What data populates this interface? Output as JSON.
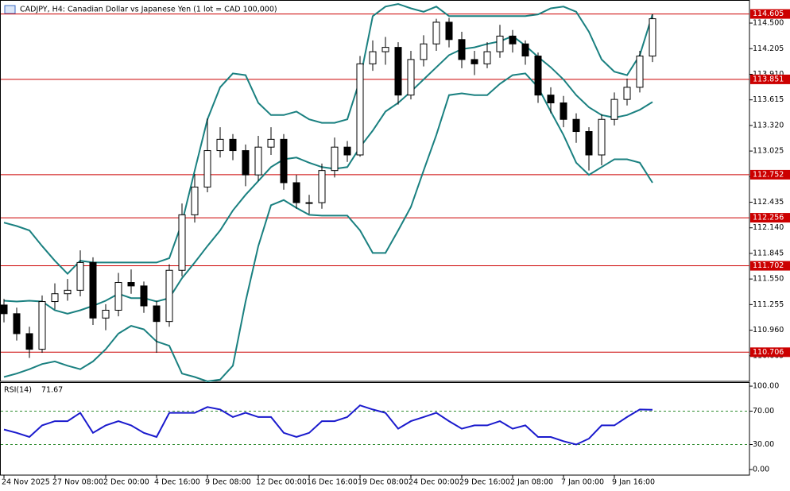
{
  "chart_data": [
    {
      "type": "candlestick",
      "title": "CADJPY, H4:  Canadian Dollar vs Japanese Yen (1 lot = CAD 100,000)",
      "categories": [
        "24 Nov 2025",
        null,
        null,
        null,
        "27 Nov 08:00",
        null,
        null,
        null,
        "2 Dec 00:00",
        null,
        null,
        null,
        "4 Dec 16:00",
        null,
        null,
        null,
        "9 Dec 08:00",
        null,
        null,
        null,
        "12 Dec 00:00",
        null,
        null,
        null,
        "16 Dec 16:00",
        null,
        null,
        null,
        "19 Dec 08:00",
        null,
        null,
        null,
        "24 Dec 00:00",
        null,
        null,
        null,
        "29 Dec 16:00",
        null,
        null,
        null,
        "2 Jan 08:00",
        null,
        null,
        null,
        "7 Jan 00:00",
        null,
        null,
        null,
        "9 Jan 16:00",
        null,
        null,
        null
      ],
      "open": [
        111.25,
        111.15,
        110.92,
        110.74,
        111.29,
        111.38,
        111.42,
        111.74,
        111.1,
        111.19,
        111.51,
        111.47,
        111.24,
        111.06,
        111.65,
        112.29,
        112.61,
        113.03,
        113.16,
        113.03,
        112.75,
        113.07,
        113.16,
        112.66,
        112.43,
        112.43,
        112.8,
        113.07,
        112.98,
        114.03,
        114.17,
        114.22,
        113.67,
        114.08,
        114.26,
        114.51,
        114.31,
        114.08,
        114.03,
        114.17,
        114.35,
        114.26,
        114.12,
        113.67,
        113.58,
        113.39,
        113.25,
        112.98,
        113.39,
        113.62,
        113.76,
        114.12
      ],
      "high": [
        111.32,
        111.22,
        111.0,
        111.36,
        111.5,
        111.55,
        111.88,
        111.8,
        111.26,
        111.62,
        111.66,
        111.52,
        111.3,
        111.72,
        112.42,
        112.76,
        113.4,
        113.3,
        113.22,
        113.1,
        113.2,
        113.3,
        113.22,
        112.75,
        112.52,
        112.88,
        113.18,
        113.14,
        114.12,
        114.3,
        114.34,
        114.28,
        114.18,
        114.36,
        114.55,
        114.56,
        114.4,
        114.18,
        114.28,
        114.48,
        114.42,
        114.3,
        114.16,
        113.76,
        113.66,
        113.46,
        113.3,
        113.45,
        113.7,
        113.86,
        114.18,
        114.6
      ],
      "low": [
        111.05,
        110.84,
        110.64,
        110.7,
        111.2,
        111.3,
        111.35,
        111.02,
        110.96,
        111.12,
        111.38,
        111.16,
        110.7,
        111.0,
        111.58,
        112.2,
        112.55,
        112.95,
        112.92,
        112.62,
        112.68,
        112.98,
        112.58,
        112.36,
        112.3,
        112.36,
        112.72,
        112.9,
        112.96,
        113.95,
        114.02,
        113.56,
        113.62,
        114.0,
        114.18,
        114.22,
        113.98,
        113.9,
        113.98,
        114.1,
        114.16,
        114.02,
        113.58,
        113.46,
        113.3,
        113.12,
        112.8,
        112.86,
        113.32,
        113.55,
        113.7,
        114.05
      ],
      "close": [
        111.15,
        110.92,
        110.74,
        111.29,
        111.38,
        111.42,
        111.74,
        111.1,
        111.19,
        111.51,
        111.47,
        111.24,
        111.06,
        111.65,
        112.29,
        112.61,
        113.03,
        113.16,
        113.03,
        112.75,
        113.07,
        113.16,
        112.66,
        112.43,
        112.43,
        112.8,
        113.07,
        112.98,
        114.03,
        114.17,
        114.22,
        113.67,
        114.08,
        114.26,
        114.51,
        114.31,
        114.08,
        114.03,
        114.17,
        114.35,
        114.26,
        114.12,
        113.67,
        113.58,
        113.39,
        113.25,
        112.98,
        113.39,
        113.62,
        113.76,
        114.12,
        114.55
      ],
      "up_color": "#ffffff",
      "down_color": "#000000",
      "bands": {
        "color": "#1a8080",
        "upper": [
          112.2,
          112.16,
          112.11,
          111.93,
          111.76,
          111.61,
          111.76,
          111.74,
          111.74,
          111.74,
          111.74,
          111.74,
          111.74,
          111.79,
          112.2,
          112.8,
          113.39,
          113.76,
          113.92,
          113.9,
          113.58,
          113.44,
          113.44,
          113.48,
          113.39,
          113.35,
          113.35,
          113.39,
          113.85,
          114.58,
          114.69,
          114.72,
          114.67,
          114.63,
          114.69,
          114.58,
          114.58,
          114.58,
          114.58,
          114.58,
          114.58,
          114.58,
          114.6,
          114.67,
          114.69,
          114.63,
          114.4,
          114.08,
          113.94,
          113.9,
          114.13,
          114.6
        ],
        "middle": [
          111.3,
          111.29,
          111.3,
          111.29,
          111.19,
          111.15,
          111.19,
          111.24,
          111.3,
          111.38,
          111.33,
          111.33,
          111.29,
          111.33,
          111.56,
          111.74,
          111.93,
          112.11,
          112.34,
          112.52,
          112.68,
          112.84,
          112.93,
          112.95,
          112.89,
          112.84,
          112.82,
          112.84,
          113.07,
          113.26,
          113.48,
          113.58,
          113.71,
          113.85,
          113.99,
          114.13,
          114.2,
          114.22,
          114.26,
          114.29,
          114.35,
          114.24,
          114.11,
          113.99,
          113.85,
          113.67,
          113.53,
          113.44,
          113.41,
          113.44,
          113.5,
          113.59
        ],
        "lower": [
          110.42,
          110.46,
          110.51,
          110.57,
          110.6,
          110.55,
          110.51,
          110.6,
          110.74,
          110.92,
          111.01,
          110.97,
          110.83,
          110.78,
          110.46,
          110.42,
          110.37,
          110.39,
          110.55,
          111.29,
          111.93,
          112.4,
          112.46,
          112.37,
          112.29,
          112.28,
          112.28,
          112.28,
          112.11,
          111.85,
          111.85,
          112.11,
          112.38,
          112.8,
          113.21,
          113.67,
          113.69,
          113.67,
          113.67,
          113.8,
          113.9,
          113.92,
          113.76,
          113.48,
          113.21,
          112.89,
          112.75,
          112.84,
          112.93,
          112.93,
          112.89,
          112.66
        ]
      },
      "levels": {
        "color": "#cc0000",
        "values": [
          114.605,
          113.851,
          112.752,
          112.256,
          111.702,
          110.706
        ]
      },
      "ylim": [
        110.37,
        114.766
      ],
      "yticks": [
        {
          "value": 114.5,
          "label": "114.500"
        },
        {
          "value": 114.205,
          "label": "114.205"
        },
        {
          "value": 113.91,
          "label": "113.910"
        },
        {
          "value": 113.615,
          "label": "113.615"
        },
        {
          "value": 113.32,
          "label": "113.320"
        },
        {
          "value": 113.025,
          "label": "113.025"
        },
        {
          "value": 112.73,
          "label": "112.730"
        },
        {
          "value": 112.435,
          "label": "112.435"
        },
        {
          "value": 112.14,
          "label": "112.140"
        },
        {
          "value": 111.845,
          "label": "111.845"
        },
        {
          "value": 111.55,
          "label": "111.550"
        },
        {
          "value": 111.255,
          "label": "111.255"
        },
        {
          "value": 110.96,
          "label": "110.960"
        },
        {
          "value": 110.665,
          "label": "110.665"
        }
      ]
    },
    {
      "type": "line",
      "title": "RSI(14)",
      "color": "#1a1acd",
      "values": [
        48,
        44,
        39,
        53,
        58,
        58,
        68,
        44,
        53,
        58,
        53,
        44,
        39,
        68,
        68,
        68,
        75,
        72,
        63,
        68,
        63,
        63,
        44,
        39,
        44,
        58,
        58,
        63,
        77,
        72,
        68,
        49,
        58,
        63,
        68,
        58,
        49,
        53,
        53,
        58,
        49,
        53,
        39,
        39,
        34,
        30,
        37,
        53,
        53,
        63,
        72,
        71.67
      ],
      "levels": {
        "color": "#2e8b2e",
        "values": [
          70,
          30
        ]
      },
      "ylim": [
        -6.7,
        104.8
      ],
      "yticks": [
        {
          "value": 100,
          "label": "100.00"
        },
        {
          "value": 70,
          "label": "70.00"
        },
        {
          "value": 30,
          "label": "30.00"
        },
        {
          "value": 0,
          "label": "0.00"
        }
      ]
    }
  ]
}
